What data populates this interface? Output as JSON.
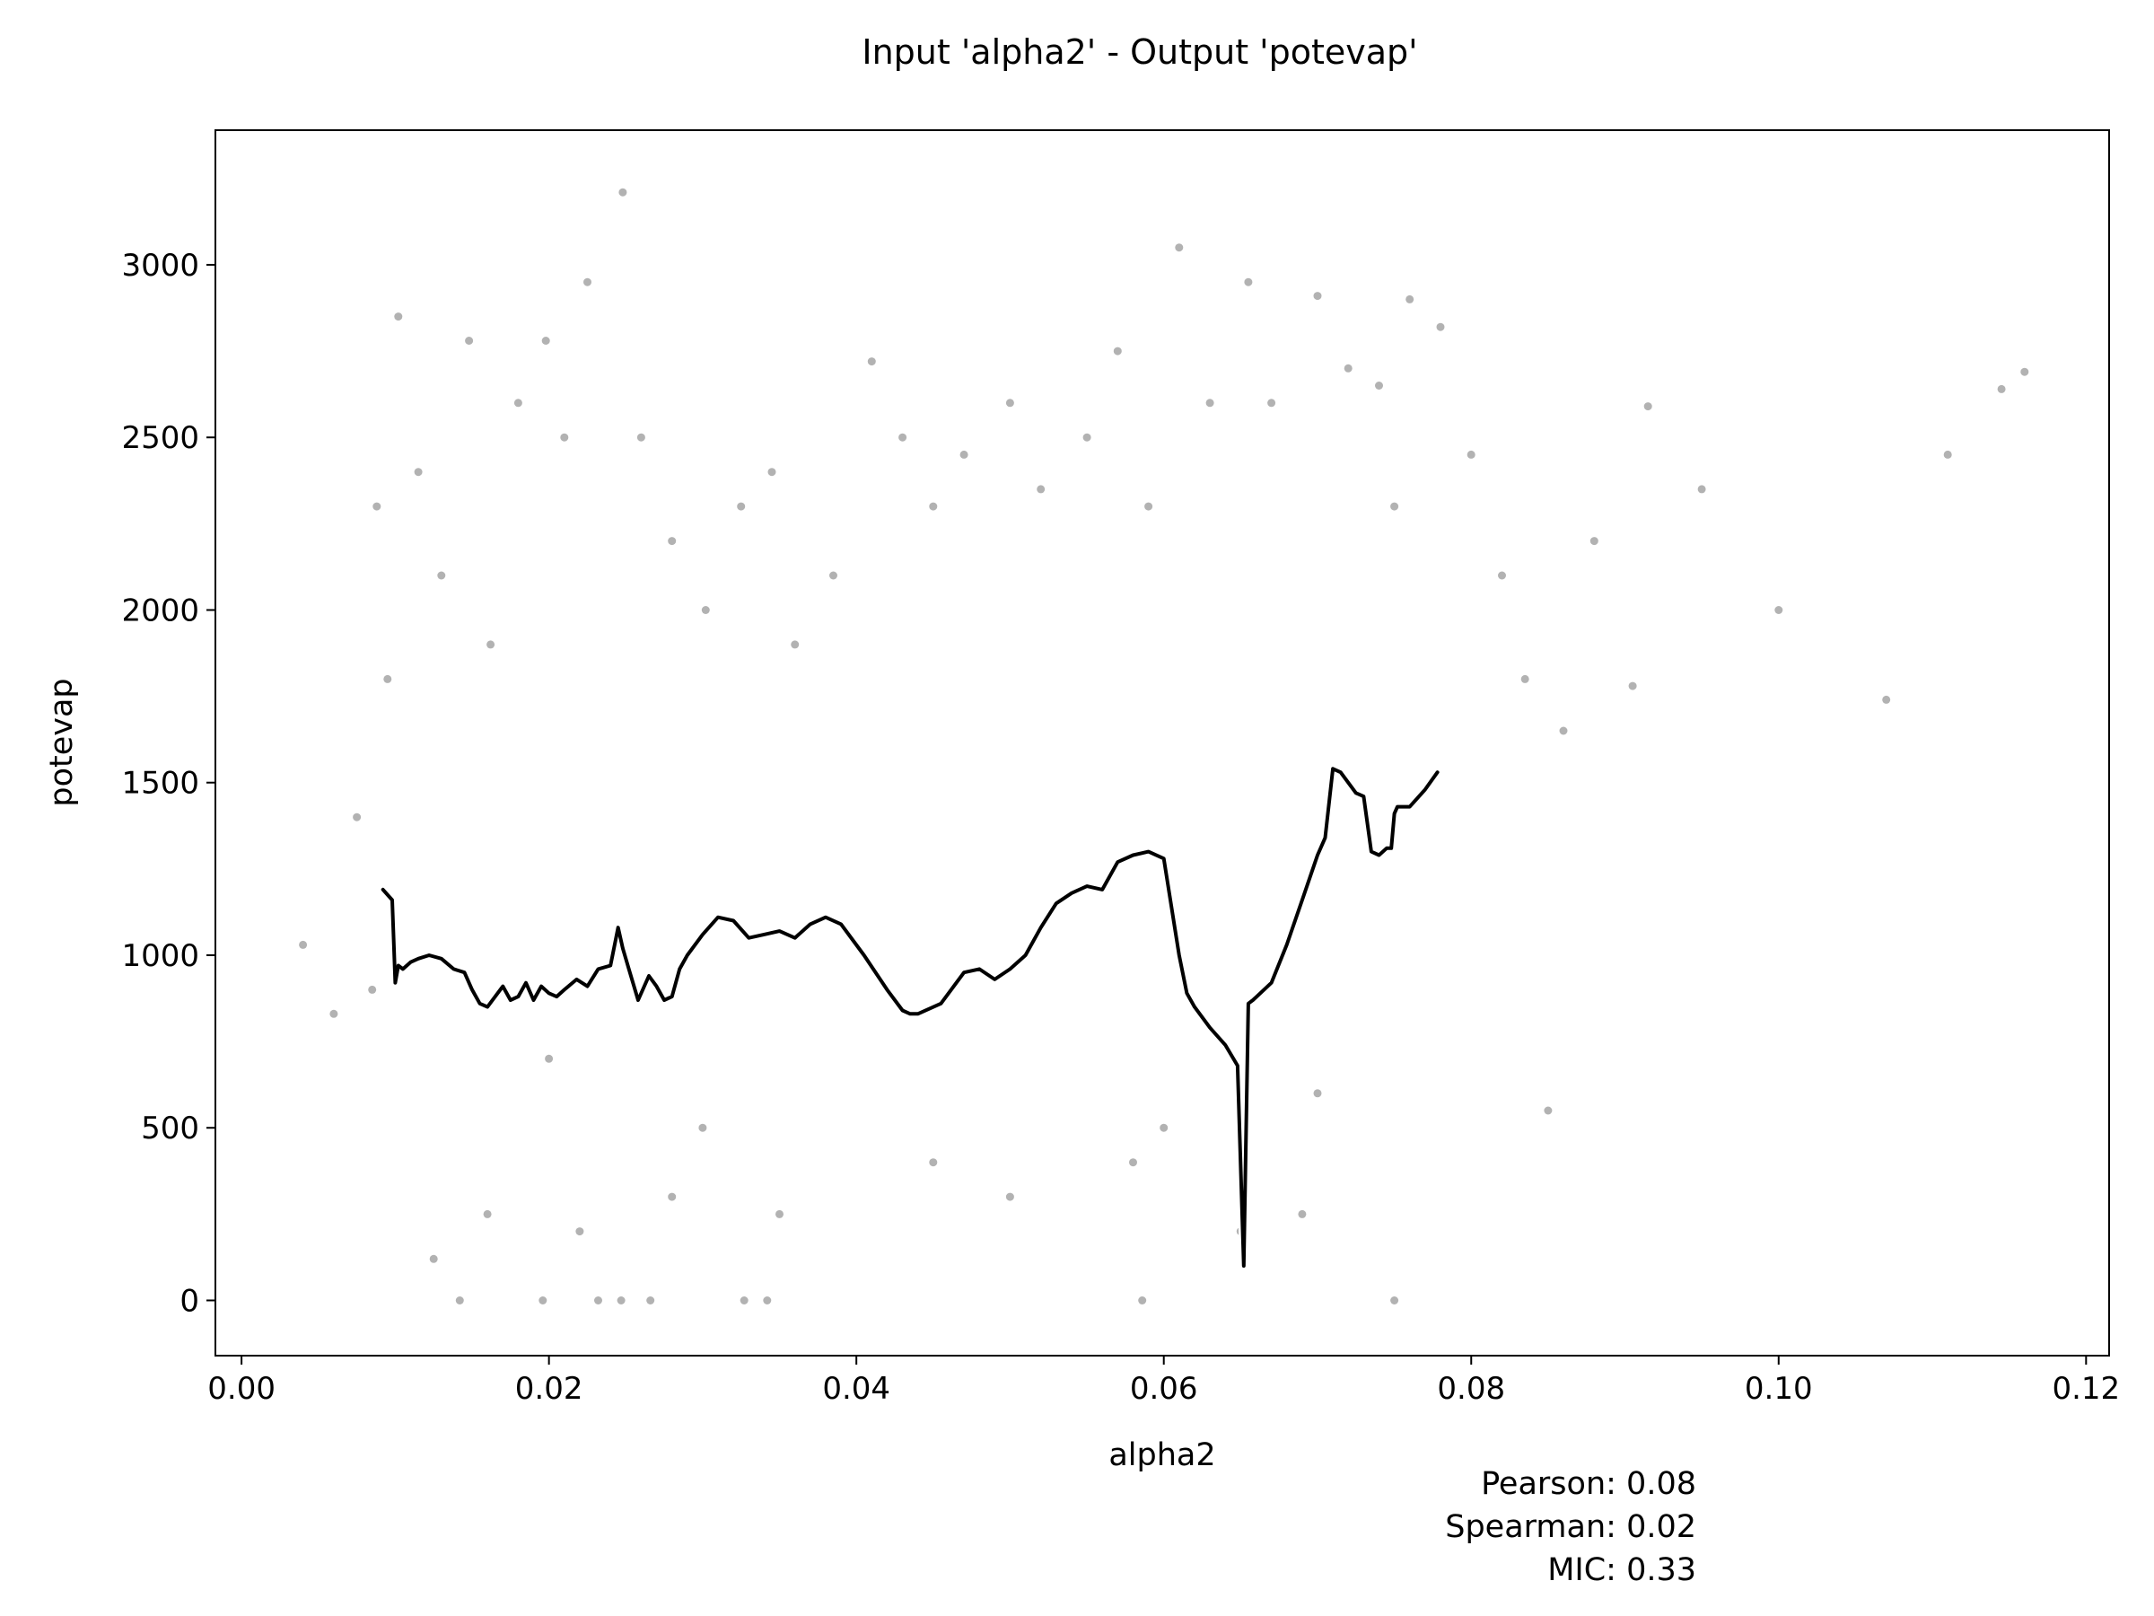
{
  "chart_data": {
    "type": "scatter",
    "title": "Input 'alpha2' - Output 'potevap'",
    "xlabel": "alpha2",
    "ylabel": "potevap",
    "xlim": [
      -0.0017,
      0.1215
    ],
    "ylim": [
      -160,
      3390
    ],
    "xticks": [
      0.0,
      0.02,
      0.04,
      0.06,
      0.08,
      0.1,
      0.12
    ],
    "xtick_labels": [
      "0.00",
      "0.02",
      "0.04",
      "0.06",
      "0.08",
      "0.10",
      "0.12"
    ],
    "yticks": [
      0,
      500,
      1000,
      1500,
      2000,
      2500,
      3000
    ],
    "ytick_labels": [
      "0",
      "500",
      "1000",
      "1500",
      "2000",
      "2500",
      "3000"
    ],
    "grid": false,
    "colors": {
      "points": "#000000",
      "trend": "#000000",
      "trend_outline": "#ffffff"
    },
    "series": [
      {
        "kind": "scatter",
        "note_points": "dense cloud of semi-transparent points",
        "x": [
          0.004,
          0.006,
          0.0075,
          0.0085,
          0.0088,
          0.0095,
          0.0102,
          0.0115,
          0.013,
          0.0148,
          0.0162,
          0.018,
          0.0198,
          0.021,
          0.0225,
          0.0248,
          0.026,
          0.028,
          0.0302,
          0.0325,
          0.0345,
          0.036,
          0.0385,
          0.041,
          0.043,
          0.045,
          0.047,
          0.05,
          0.052,
          0.055,
          0.057,
          0.059,
          0.061,
          0.063,
          0.0655,
          0.067,
          0.07,
          0.072,
          0.074,
          0.075,
          0.076,
          0.078,
          0.08,
          0.082,
          0.0835,
          0.086,
          0.088,
          0.0915,
          0.095,
          0.1,
          0.107,
          0.111,
          0.1145,
          0.116,
          0.016,
          0.022,
          0.028,
          0.035,
          0.05,
          0.058,
          0.065,
          0.069,
          0.02,
          0.03,
          0.045,
          0.06,
          0.07,
          0.085,
          0.0905,
          0.0125,
          0.0142,
          0.0196,
          0.0232,
          0.0247,
          0.0266,
          0.0327,
          0.0342,
          0.0586,
          0.075
        ],
        "y": [
          1030,
          830,
          1400,
          900,
          2300,
          1800,
          2850,
          2400,
          2100,
          2780,
          1900,
          2600,
          2780,
          2500,
          2950,
          3210,
          2500,
          2200,
          2000,
          2300,
          2400,
          1900,
          2100,
          2720,
          2500,
          2300,
          2450,
          2600,
          2350,
          2500,
          2750,
          2300,
          3050,
          2600,
          2950,
          2600,
          2910,
          2700,
          2650,
          2300,
          2900,
          2820,
          2450,
          2100,
          1800,
          1650,
          2200,
          2590,
          2350,
          2000,
          1740,
          2450,
          2640,
          2690,
          250,
          200,
          300,
          250,
          300,
          400,
          200,
          250,
          700,
          500,
          400,
          500,
          600,
          550,
          1780,
          120,
          0,
          0,
          0,
          0,
          0,
          0,
          0,
          0,
          0
        ]
      },
      {
        "kind": "line",
        "note": "rolling trend line (black with white outline)",
        "x": [
          0.0092,
          0.0098,
          0.01,
          0.0102,
          0.0105,
          0.011,
          0.0115,
          0.0122,
          0.013,
          0.0138,
          0.0145,
          0.015,
          0.0155,
          0.016,
          0.0165,
          0.017,
          0.0175,
          0.018,
          0.0185,
          0.019,
          0.0195,
          0.02,
          0.0205,
          0.021,
          0.0218,
          0.0225,
          0.0232,
          0.024,
          0.0245,
          0.0248,
          0.0252,
          0.0258,
          0.0265,
          0.027,
          0.0275,
          0.028,
          0.0285,
          0.029,
          0.03,
          0.031,
          0.032,
          0.033,
          0.034,
          0.035,
          0.036,
          0.037,
          0.038,
          0.039,
          0.0405,
          0.042,
          0.043,
          0.0435,
          0.044,
          0.0455,
          0.047,
          0.048,
          0.049,
          0.05,
          0.051,
          0.052,
          0.053,
          0.054,
          0.055,
          0.056,
          0.057,
          0.058,
          0.059,
          0.06,
          0.061,
          0.0615,
          0.062,
          0.063,
          0.064,
          0.0648,
          0.0652,
          0.0655,
          0.0658,
          0.067,
          0.068,
          0.069,
          0.07,
          0.0705,
          0.071,
          0.0715,
          0.072,
          0.0725,
          0.073,
          0.0735,
          0.074,
          0.0745,
          0.0748,
          0.075,
          0.0752,
          0.076,
          0.077,
          0.0778
        ],
        "y": [
          1190,
          1160,
          920,
          970,
          960,
          980,
          990,
          1000,
          990,
          960,
          950,
          900,
          860,
          850,
          880,
          910,
          870,
          880,
          920,
          870,
          910,
          890,
          880,
          900,
          930,
          910,
          960,
          970,
          1080,
          1020,
          960,
          870,
          940,
          910,
          870,
          880,
          960,
          1000,
          1060,
          1110,
          1100,
          1050,
          1060,
          1070,
          1050,
          1090,
          1110,
          1090,
          1000,
          900,
          840,
          830,
          830,
          860,
          950,
          960,
          930,
          960,
          1000,
          1080,
          1150,
          1180,
          1200,
          1190,
          1270,
          1290,
          1300,
          1280,
          1000,
          890,
          850,
          790,
          740,
          680,
          100,
          860,
          870,
          920,
          1030,
          1160,
          1290,
          1340,
          1540,
          1530,
          1500,
          1470,
          1460,
          1300,
          1290,
          1310,
          1310,
          1410,
          1430,
          1430,
          1480,
          1530
        ]
      }
    ]
  },
  "stats": {
    "pearson": "Pearson: 0.08",
    "spearman": "Spearman: 0.02",
    "mic": "MIC: 0.33"
  }
}
